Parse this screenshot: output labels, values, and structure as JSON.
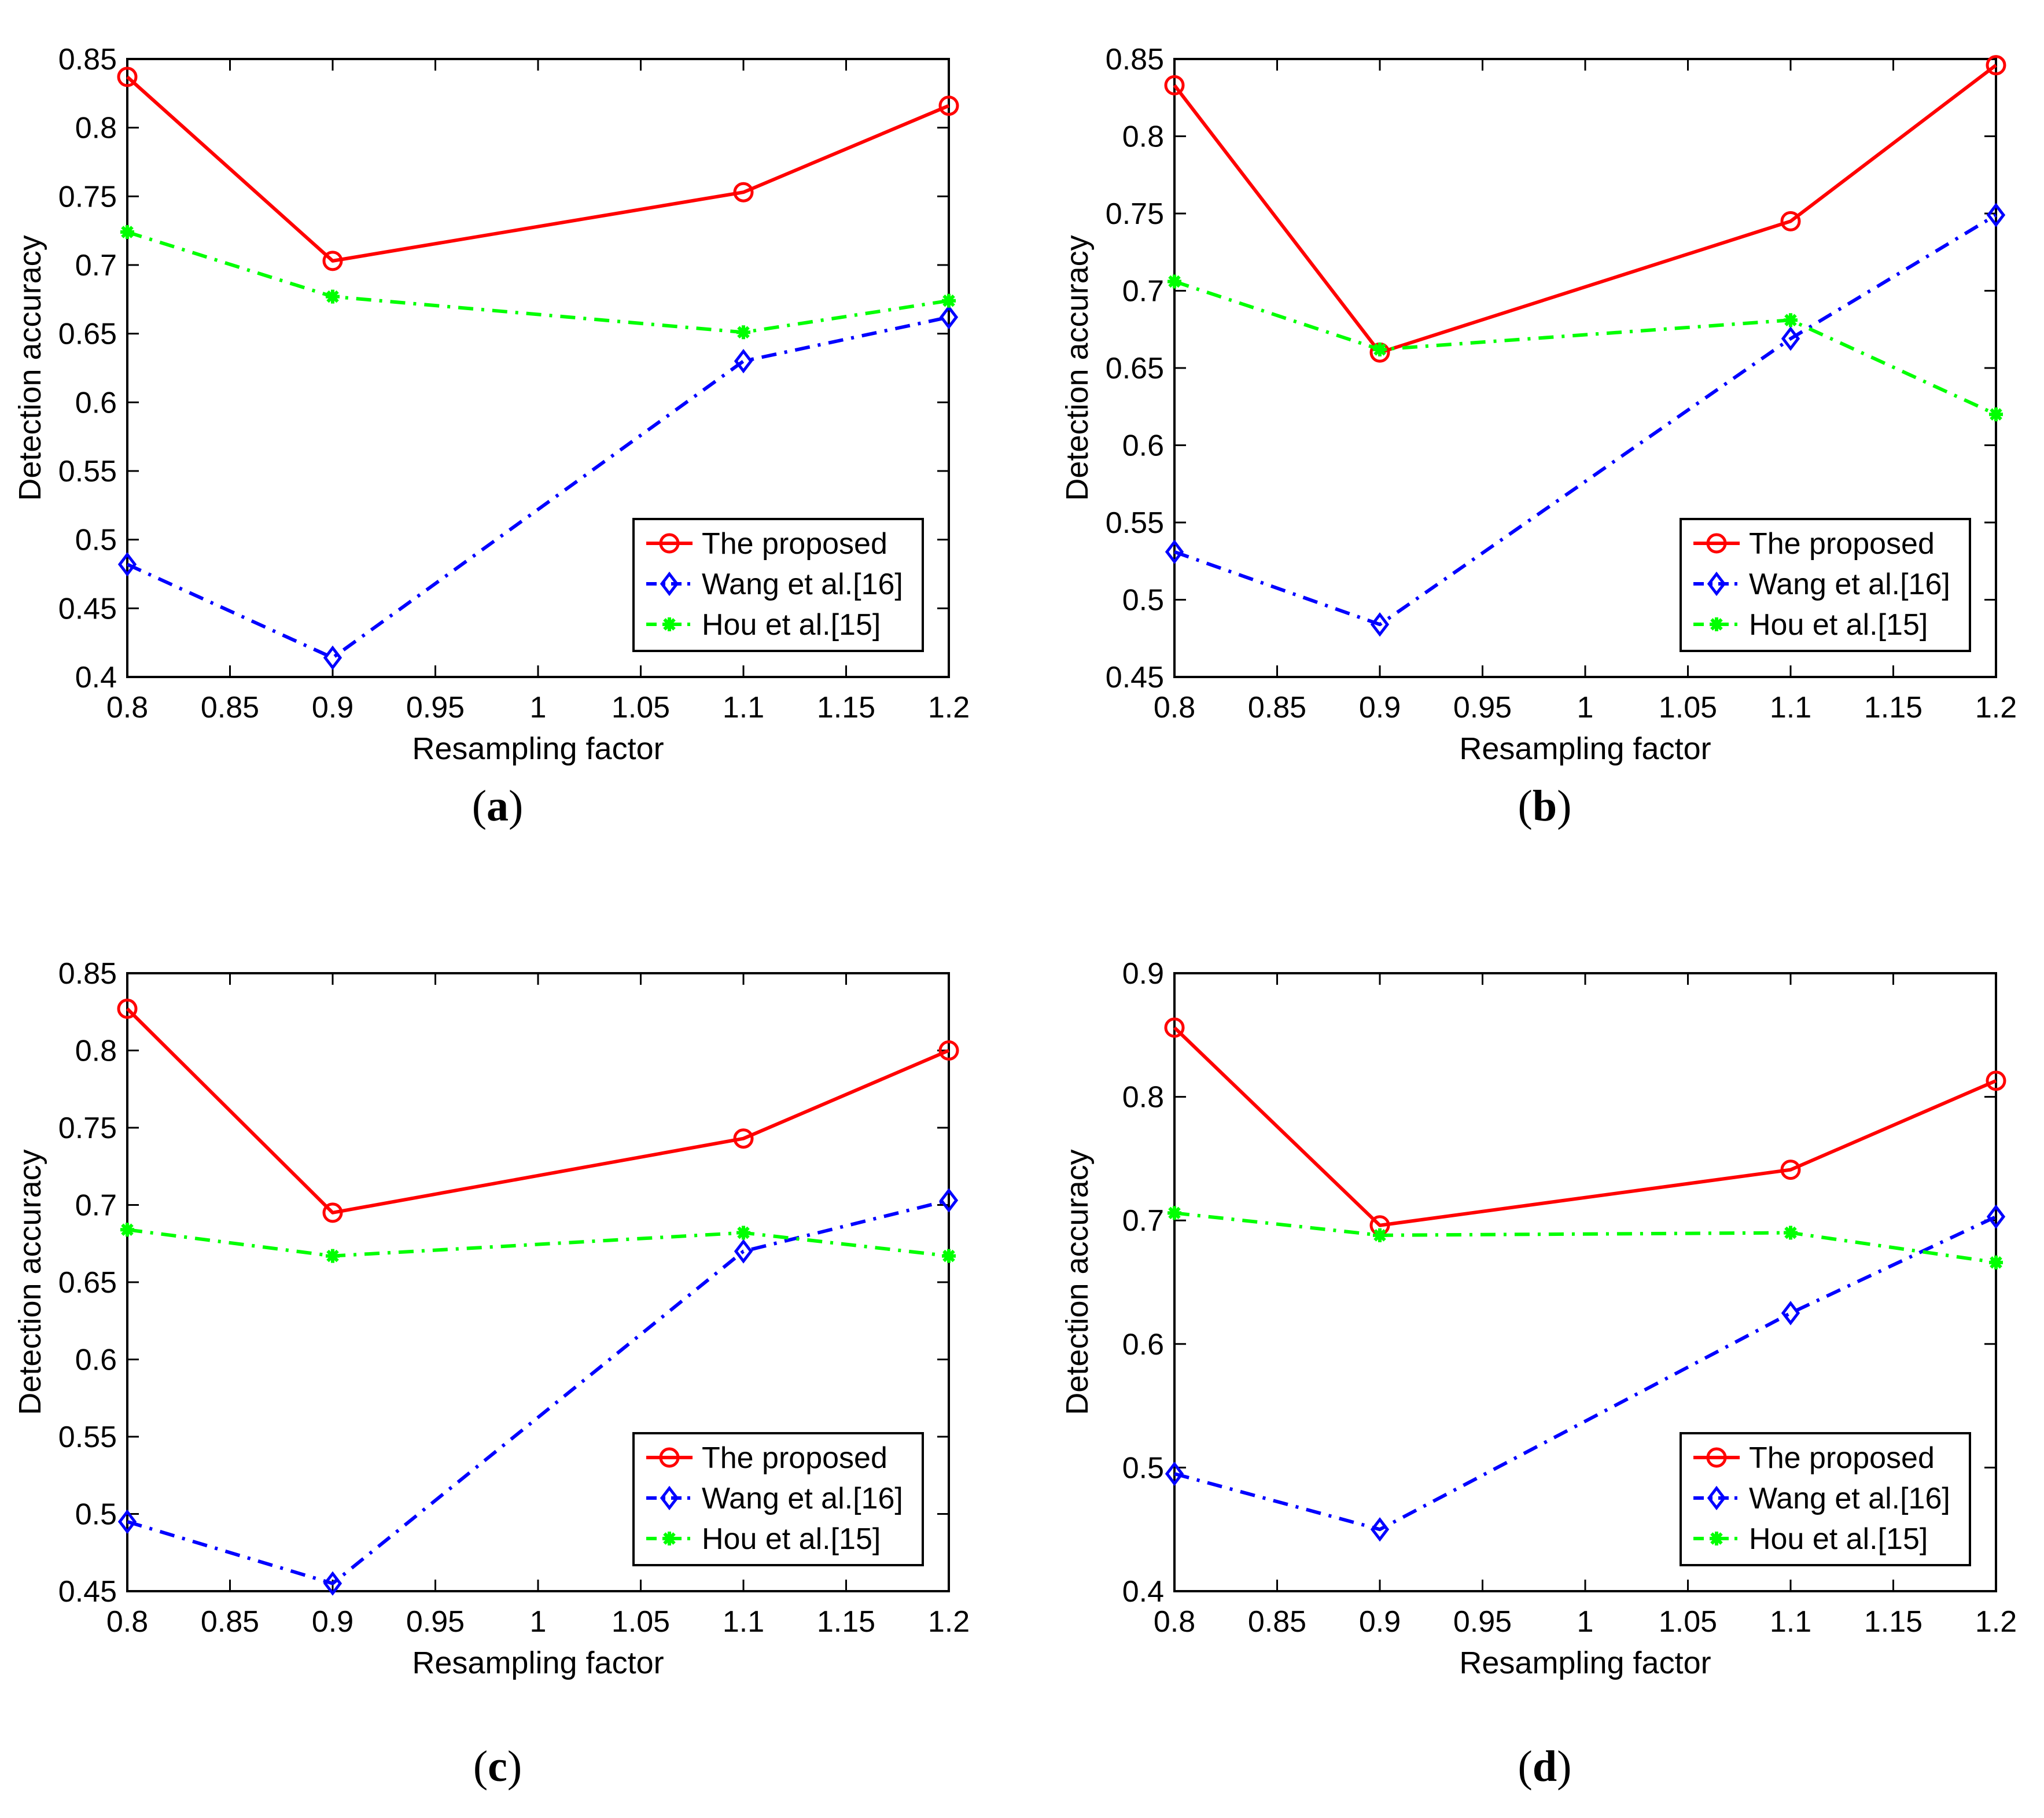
{
  "chart_data": [
    {
      "type": "line",
      "caption_label": "a",
      "xlabel": "Resampling factor",
      "ylabel": "Detection accuracy",
      "xlim": [
        0.8,
        1.2
      ],
      "ylim": [
        0.4,
        0.85
      ],
      "xticks": [
        0.8,
        0.85,
        0.9,
        0.95,
        1,
        1.05,
        1.1,
        1.15,
        1.2
      ],
      "yticks": [
        0.4,
        0.45,
        0.5,
        0.55,
        0.6,
        0.65,
        0.7,
        0.75,
        0.8,
        0.85
      ],
      "xtick_labels": [
        "0.8",
        "0.85",
        "0.9",
        "0.95",
        "1",
        "1.05",
        "1.1",
        "1.15",
        "1.2"
      ],
      "ytick_labels": [
        "0.4",
        "0.45",
        "0.5",
        "0.55",
        "0.6",
        "0.65",
        "0.7",
        "0.75",
        "0.8",
        "0.85"
      ],
      "grid": false,
      "legend_position": "bottom-right",
      "x": [
        0.8,
        0.9,
        1.1,
        1.2
      ],
      "series": [
        {
          "name": "The proposed",
          "values": [
            0.837,
            0.703,
            0.753,
            0.816
          ],
          "color": "#ff0000",
          "line_style": "solid",
          "marker": "circle"
        },
        {
          "name": "Wang et al.[16]",
          "values": [
            0.482,
            0.414,
            0.63,
            0.662
          ],
          "color": "#0000ff",
          "line_style": "dashdot",
          "marker": "diamond"
        },
        {
          "name": "Hou et al.[15]",
          "values": [
            0.724,
            0.677,
            0.651,
            0.674
          ],
          "color": "#00ff00",
          "line_style": "dashdot",
          "marker": "asterisk"
        }
      ]
    },
    {
      "type": "line",
      "caption_label": "b",
      "xlabel": "Resampling factor",
      "ylabel": "Detection accuracy",
      "xlim": [
        0.8,
        1.2
      ],
      "ylim": [
        0.45,
        0.85
      ],
      "xticks": [
        0.8,
        0.85,
        0.9,
        0.95,
        1,
        1.05,
        1.1,
        1.15,
        1.2
      ],
      "yticks": [
        0.45,
        0.5,
        0.55,
        0.6,
        0.65,
        0.7,
        0.75,
        0.8,
        0.85
      ],
      "xtick_labels": [
        "0.8",
        "0.85",
        "0.9",
        "0.95",
        "1",
        "1.05",
        "1.1",
        "1.15",
        "1.2"
      ],
      "ytick_labels": [
        "0.45",
        "0.5",
        "0.55",
        "0.6",
        "0.65",
        "0.7",
        "0.75",
        "0.8",
        "0.85"
      ],
      "grid": false,
      "legend_position": "bottom-right",
      "x": [
        0.8,
        0.9,
        1.1,
        1.2
      ],
      "series": [
        {
          "name": "The proposed",
          "values": [
            0.833,
            0.66,
            0.745,
            0.846
          ],
          "color": "#ff0000",
          "line_style": "solid",
          "marker": "circle"
        },
        {
          "name": "Wang et al.[16]",
          "values": [
            0.531,
            0.484,
            0.669,
            0.749
          ],
          "color": "#0000ff",
          "line_style": "dashdot",
          "marker": "diamond"
        },
        {
          "name": "Hou et al.[15]",
          "values": [
            0.706,
            0.662,
            0.681,
            0.62
          ],
          "color": "#00ff00",
          "line_style": "dashdot",
          "marker": "asterisk"
        }
      ]
    },
    {
      "type": "line",
      "caption_label": "c",
      "xlabel": "Resampling factor",
      "ylabel": "Detection accuracy",
      "xlim": [
        0.8,
        1.2
      ],
      "ylim": [
        0.45,
        0.85
      ],
      "xticks": [
        0.8,
        0.85,
        0.9,
        0.95,
        1,
        1.05,
        1.1,
        1.15,
        1.2
      ],
      "yticks": [
        0.45,
        0.5,
        0.55,
        0.6,
        0.65,
        0.7,
        0.75,
        0.8,
        0.85
      ],
      "xtick_labels": [
        "0.8",
        "0.85",
        "0.9",
        "0.95",
        "1",
        "1.05",
        "1.1",
        "1.15",
        "1.2"
      ],
      "ytick_labels": [
        "0.45",
        "0.5",
        "0.55",
        "0.6",
        "0.65",
        "0.7",
        "0.75",
        "0.8",
        "0.85"
      ],
      "grid": false,
      "legend_position": "bottom-right",
      "x": [
        0.8,
        0.9,
        1.1,
        1.2
      ],
      "series": [
        {
          "name": "The proposed",
          "values": [
            0.827,
            0.695,
            0.743,
            0.8
          ],
          "color": "#ff0000",
          "line_style": "solid",
          "marker": "circle"
        },
        {
          "name": "Wang et al.[16]",
          "values": [
            0.495,
            0.455,
            0.67,
            0.703
          ],
          "color": "#0000ff",
          "line_style": "dashdot",
          "marker": "diamond"
        },
        {
          "name": "Hou et al.[15]",
          "values": [
            0.684,
            0.667,
            0.682,
            0.667
          ],
          "color": "#00ff00",
          "line_style": "dashdot",
          "marker": "asterisk"
        }
      ]
    },
    {
      "type": "line",
      "caption_label": "d",
      "xlabel": "Resampling factor",
      "ylabel": "Detection accuracy",
      "xlim": [
        0.8,
        1.2
      ],
      "ylim": [
        0.4,
        0.9
      ],
      "xticks": [
        0.8,
        0.85,
        0.9,
        0.95,
        1,
        1.05,
        1.1,
        1.15,
        1.2
      ],
      "yticks": [
        0.4,
        0.5,
        0.6,
        0.7,
        0.8,
        0.9
      ],
      "xtick_labels": [
        "0.8",
        "0.85",
        "0.9",
        "0.95",
        "1",
        "1.05",
        "1.1",
        "1.15",
        "1.2"
      ],
      "ytick_labels": [
        "0.4",
        "0.5",
        "0.6",
        "0.7",
        "0.8",
        "0.9"
      ],
      "grid": false,
      "legend_position": "bottom-right",
      "x": [
        0.8,
        0.9,
        1.1,
        1.2
      ],
      "series": [
        {
          "name": "The proposed",
          "values": [
            0.856,
            0.696,
            0.741,
            0.813
          ],
          "color": "#ff0000",
          "line_style": "solid",
          "marker": "circle"
        },
        {
          "name": "Wang et al.[16]",
          "values": [
            0.495,
            0.45,
            0.625,
            0.703
          ],
          "color": "#0000ff",
          "line_style": "dashdot",
          "marker": "diamond"
        },
        {
          "name": "Hou et al.[15]",
          "values": [
            0.706,
            0.688,
            0.69,
            0.666
          ],
          "color": "#00ff00",
          "line_style": "dashdot",
          "marker": "asterisk"
        }
      ]
    }
  ],
  "captions": [
    "a",
    "b",
    "c",
    "d"
  ]
}
